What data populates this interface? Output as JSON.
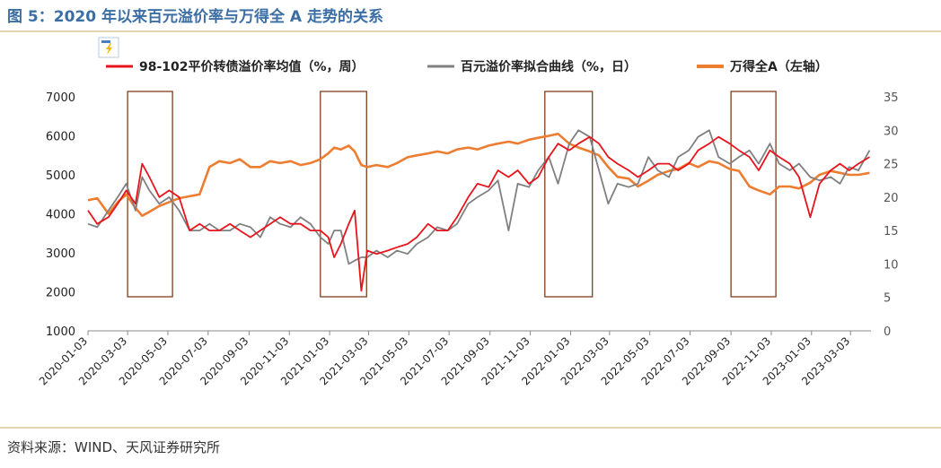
{
  "page": {
    "title": "图 5：2020 年以来百元溢价率与万得全 A 走势的关系",
    "source": "资料来源：WIND、天风证券研究所"
  },
  "colors": {
    "title": "#3a6ea5",
    "rule": "#c9a45c",
    "red_series": "#e8141c",
    "gray_series": "#808080",
    "orange_series": "#ed7d31",
    "highlight_box": "#7f3f1f"
  },
  "chart_data": {
    "type": "line",
    "xlabel": "",
    "ylabel": "",
    "x_ticks": [
      "2020-01-03",
      "2020-03-03",
      "2020-05-03",
      "2020-07-03",
      "2020-09-03",
      "2020-11-03",
      "2021-01-03",
      "2021-03-03",
      "2021-05-03",
      "2021-07-03",
      "2021-09-03",
      "2021-11-03",
      "2022-01-03",
      "2022-03-03",
      "2022-05-03",
      "2022-07-03",
      "2022-09-03",
      "2022-11-03",
      "2023-01-03",
      "2023-03-03"
    ],
    "x_range": [
      "2020-01-03",
      "2023-04-03"
    ],
    "y_left": {
      "range": [
        1000,
        7000
      ],
      "ticks": [
        1000,
        2000,
        3000,
        4000,
        5000,
        6000,
        7000
      ]
    },
    "y_right": {
      "range": [
        0,
        35
      ],
      "ticks": [
        0,
        5,
        10,
        15,
        20,
        25,
        30,
        35
      ]
    },
    "legend_position": "top",
    "legend_icon": "lightning-icon",
    "grid": false,
    "series": [
      {
        "name": "98-102平价转债溢价率均值（%，周）",
        "axis": "right",
        "color": "#e8141c",
        "x": [
          "2020-01-03",
          "2020-01-17",
          "2020-02-03",
          "2020-02-17",
          "2020-03-01",
          "2020-03-15",
          "2020-03-25",
          "2020-04-05",
          "2020-04-20",
          "2020-05-05",
          "2020-05-20",
          "2020-06-05",
          "2020-06-20",
          "2020-07-05",
          "2020-07-20",
          "2020-08-05",
          "2020-08-20",
          "2020-09-05",
          "2020-09-20",
          "2020-10-05",
          "2020-10-20",
          "2020-11-05",
          "2020-11-20",
          "2020-12-05",
          "2020-12-20",
          "2021-01-01",
          "2021-01-10",
          "2021-01-20",
          "2021-02-01",
          "2021-02-10",
          "2021-02-20",
          "2021-03-01",
          "2021-03-15",
          "2021-04-01",
          "2021-04-15",
          "2021-05-01",
          "2021-05-15",
          "2021-06-01",
          "2021-06-15",
          "2021-07-01",
          "2021-07-15",
          "2021-08-01",
          "2021-08-15",
          "2021-09-01",
          "2021-09-15",
          "2021-10-01",
          "2021-10-15",
          "2021-11-01",
          "2021-11-15",
          "2021-12-01",
          "2021-12-15",
          "2022-01-01",
          "2022-01-15",
          "2022-02-01",
          "2022-02-15",
          "2022-03-01",
          "2022-03-15",
          "2022-04-01",
          "2022-04-15",
          "2022-05-01",
          "2022-05-15",
          "2022-06-01",
          "2022-06-15",
          "2022-07-01",
          "2022-07-15",
          "2022-08-01",
          "2022-08-15",
          "2022-09-01",
          "2022-09-15",
          "2022-10-01",
          "2022-10-15",
          "2022-11-01",
          "2022-11-15",
          "2022-12-01",
          "2022-12-15",
          "2023-01-01",
          "2023-01-15",
          "2023-02-01",
          "2023-02-15",
          "2023-03-01",
          "2023-03-15",
          "2023-04-01"
        ],
        "values": [
          18.0,
          16.0,
          17.0,
          19.0,
          21.0,
          19.0,
          25.0,
          23.0,
          20.0,
          21.0,
          20.0,
          15.0,
          16.0,
          15.0,
          15.0,
          16.0,
          15.0,
          14.0,
          15.0,
          16.0,
          17.0,
          16.0,
          16.0,
          15.0,
          15.0,
          14.0,
          11.0,
          13.0,
          16.0,
          18.0,
          6.0,
          12.0,
          11.5,
          12.0,
          12.5,
          13.0,
          14.0,
          16.0,
          15.0,
          15.0,
          17.0,
          20.0,
          22.0,
          21.5,
          24.0,
          23.0,
          24.0,
          22.0,
          23.0,
          26.0,
          28.0,
          27.0,
          28.0,
          29.0,
          28.0,
          26.0,
          25.0,
          24.0,
          23.0,
          24.0,
          25.0,
          25.0,
          24.0,
          25.0,
          27.0,
          28.0,
          29.0,
          28.0,
          27.0,
          26.0,
          24.0,
          27.0,
          26.0,
          25.0,
          23.0,
          17.0,
          22.0,
          24.0,
          25.0,
          24.0,
          25.0,
          26.0
        ]
      },
      {
        "name": "百元溢价率拟合曲线（%，日）",
        "axis": "right",
        "color": "#808080",
        "x": [
          "2020-01-03",
          "2020-01-17",
          "2020-02-03",
          "2020-02-17",
          "2020-03-01",
          "2020-03-15",
          "2020-03-25",
          "2020-04-05",
          "2020-04-20",
          "2020-05-05",
          "2020-05-20",
          "2020-06-05",
          "2020-06-20",
          "2020-07-05",
          "2020-07-20",
          "2020-08-05",
          "2020-08-20",
          "2020-09-05",
          "2020-09-20",
          "2020-10-05",
          "2020-10-20",
          "2020-11-05",
          "2020-11-20",
          "2020-12-05",
          "2020-12-20",
          "2021-01-01",
          "2021-01-10",
          "2021-01-20",
          "2021-02-01",
          "2021-02-10",
          "2021-02-20",
          "2021-03-01",
          "2021-03-15",
          "2021-04-01",
          "2021-04-15",
          "2021-05-01",
          "2021-05-15",
          "2021-06-01",
          "2021-06-15",
          "2021-07-01",
          "2021-07-15",
          "2021-08-01",
          "2021-08-15",
          "2021-09-01",
          "2021-09-15",
          "2021-10-01",
          "2021-10-15",
          "2021-11-01",
          "2021-11-15",
          "2021-12-01",
          "2021-12-15",
          "2022-01-01",
          "2022-01-15",
          "2022-02-01",
          "2022-02-15",
          "2022-03-01",
          "2022-03-15",
          "2022-04-01",
          "2022-04-15",
          "2022-05-01",
          "2022-05-15",
          "2022-06-01",
          "2022-06-15",
          "2022-07-01",
          "2022-07-15",
          "2022-08-01",
          "2022-08-15",
          "2022-09-01",
          "2022-09-15",
          "2022-10-01",
          "2022-10-15",
          "2022-11-01",
          "2022-11-15",
          "2022-12-01",
          "2022-12-15",
          "2023-01-01",
          "2023-01-15",
          "2023-02-01",
          "2023-02-15",
          "2023-03-01",
          "2023-03-15",
          "2023-04-01"
        ],
        "values": [
          16.0,
          15.5,
          18.0,
          20.0,
          22.0,
          18.0,
          23.0,
          21.0,
          19.0,
          20.0,
          18.0,
          15.0,
          15.0,
          16.0,
          15.0,
          15.0,
          16.0,
          15.5,
          14.0,
          17.0,
          16.0,
          15.5,
          17.0,
          16.0,
          14.0,
          13.0,
          15.0,
          15.0,
          10.0,
          10.5,
          11.0,
          11.0,
          12.0,
          11.0,
          12.0,
          11.5,
          13.0,
          14.0,
          15.5,
          15.0,
          16.0,
          19.0,
          20.0,
          21.0,
          22.5,
          15.0,
          22.0,
          21.5,
          24.0,
          26.0,
          22.0,
          28.0,
          30.0,
          29.0,
          24.0,
          19.0,
          22.0,
          21.5,
          22.0,
          26.0,
          24.0,
          23.0,
          26.0,
          27.0,
          29.0,
          30.0,
          26.0,
          25.0,
          26.0,
          27.0,
          25.0,
          28.0,
          25.0,
          24.0,
          25.0,
          23.0,
          22.5,
          23.0,
          22.0,
          24.5,
          24.0,
          27.0
        ]
      },
      {
        "name": "万得全A（左轴）",
        "axis": "left",
        "color": "#ed7d31",
        "x": [
          "2020-01-03",
          "2020-01-17",
          "2020-02-03",
          "2020-02-17",
          "2020-03-01",
          "2020-03-15",
          "2020-03-25",
          "2020-04-05",
          "2020-04-20",
          "2020-05-05",
          "2020-05-20",
          "2020-06-05",
          "2020-06-20",
          "2020-07-05",
          "2020-07-20",
          "2020-08-05",
          "2020-08-20",
          "2020-09-05",
          "2020-09-20",
          "2020-10-05",
          "2020-10-20",
          "2020-11-05",
          "2020-11-20",
          "2020-12-05",
          "2020-12-20",
          "2021-01-01",
          "2021-01-10",
          "2021-01-20",
          "2021-02-01",
          "2021-02-10",
          "2021-02-20",
          "2021-03-01",
          "2021-03-15",
          "2021-04-01",
          "2021-04-15",
          "2021-05-01",
          "2021-05-15",
          "2021-06-01",
          "2021-06-15",
          "2021-07-01",
          "2021-07-15",
          "2021-08-01",
          "2021-08-15",
          "2021-09-01",
          "2021-09-15",
          "2021-10-01",
          "2021-10-15",
          "2021-11-01",
          "2021-11-15",
          "2021-12-01",
          "2021-12-15",
          "2022-01-01",
          "2022-01-15",
          "2022-02-01",
          "2022-02-15",
          "2022-03-01",
          "2022-03-15",
          "2022-04-01",
          "2022-04-15",
          "2022-05-01",
          "2022-05-15",
          "2022-06-01",
          "2022-06-15",
          "2022-07-01",
          "2022-07-15",
          "2022-08-01",
          "2022-08-15",
          "2022-09-01",
          "2022-09-15",
          "2022-10-01",
          "2022-10-15",
          "2022-11-01",
          "2022-11-15",
          "2022-12-01",
          "2022-12-15",
          "2023-01-01",
          "2023-01-15",
          "2023-02-01",
          "2023-02-15",
          "2023-03-01",
          "2023-03-15",
          "2023-04-01"
        ],
        "values": [
          4350,
          4400,
          4000,
          4300,
          4500,
          4150,
          3950,
          4050,
          4200,
          4300,
          4400,
          4450,
          4500,
          5200,
          5350,
          5300,
          5400,
          5200,
          5200,
          5350,
          5300,
          5350,
          5250,
          5300,
          5400,
          5550,
          5700,
          5650,
          5750,
          5600,
          5250,
          5200,
          5250,
          5200,
          5300,
          5450,
          5500,
          5550,
          5600,
          5550,
          5650,
          5700,
          5650,
          5750,
          5800,
          5850,
          5800,
          5900,
          5950,
          6000,
          6050,
          5800,
          5700,
          5600,
          5500,
          5200,
          4950,
          4900,
          4700,
          4850,
          5000,
          5100,
          5150,
          5300,
          5200,
          5350,
          5300,
          5150,
          5100,
          4700,
          4600,
          4500,
          4700,
          4700,
          4650,
          4800,
          5000,
          5100,
          5050,
          5000,
          5000,
          5050
        ]
      }
    ],
    "highlight_periods": [
      [
        "2020-03-03",
        "2020-05-10"
      ],
      [
        "2020-12-20",
        "2021-02-28"
      ],
      [
        "2021-11-25",
        "2022-02-05"
      ],
      [
        "2022-09-03",
        "2022-11-10"
      ]
    ]
  }
}
